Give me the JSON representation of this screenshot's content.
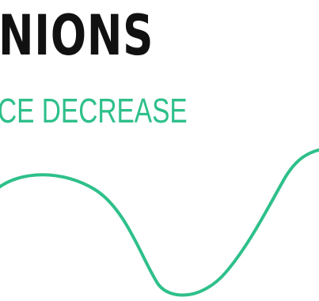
{
  "headline": "NIONS",
  "subheadline": "CE DECREASE",
  "colors": {
    "accent": "#2ec08a",
    "text": "#111111",
    "background": "#ffffff"
  }
}
